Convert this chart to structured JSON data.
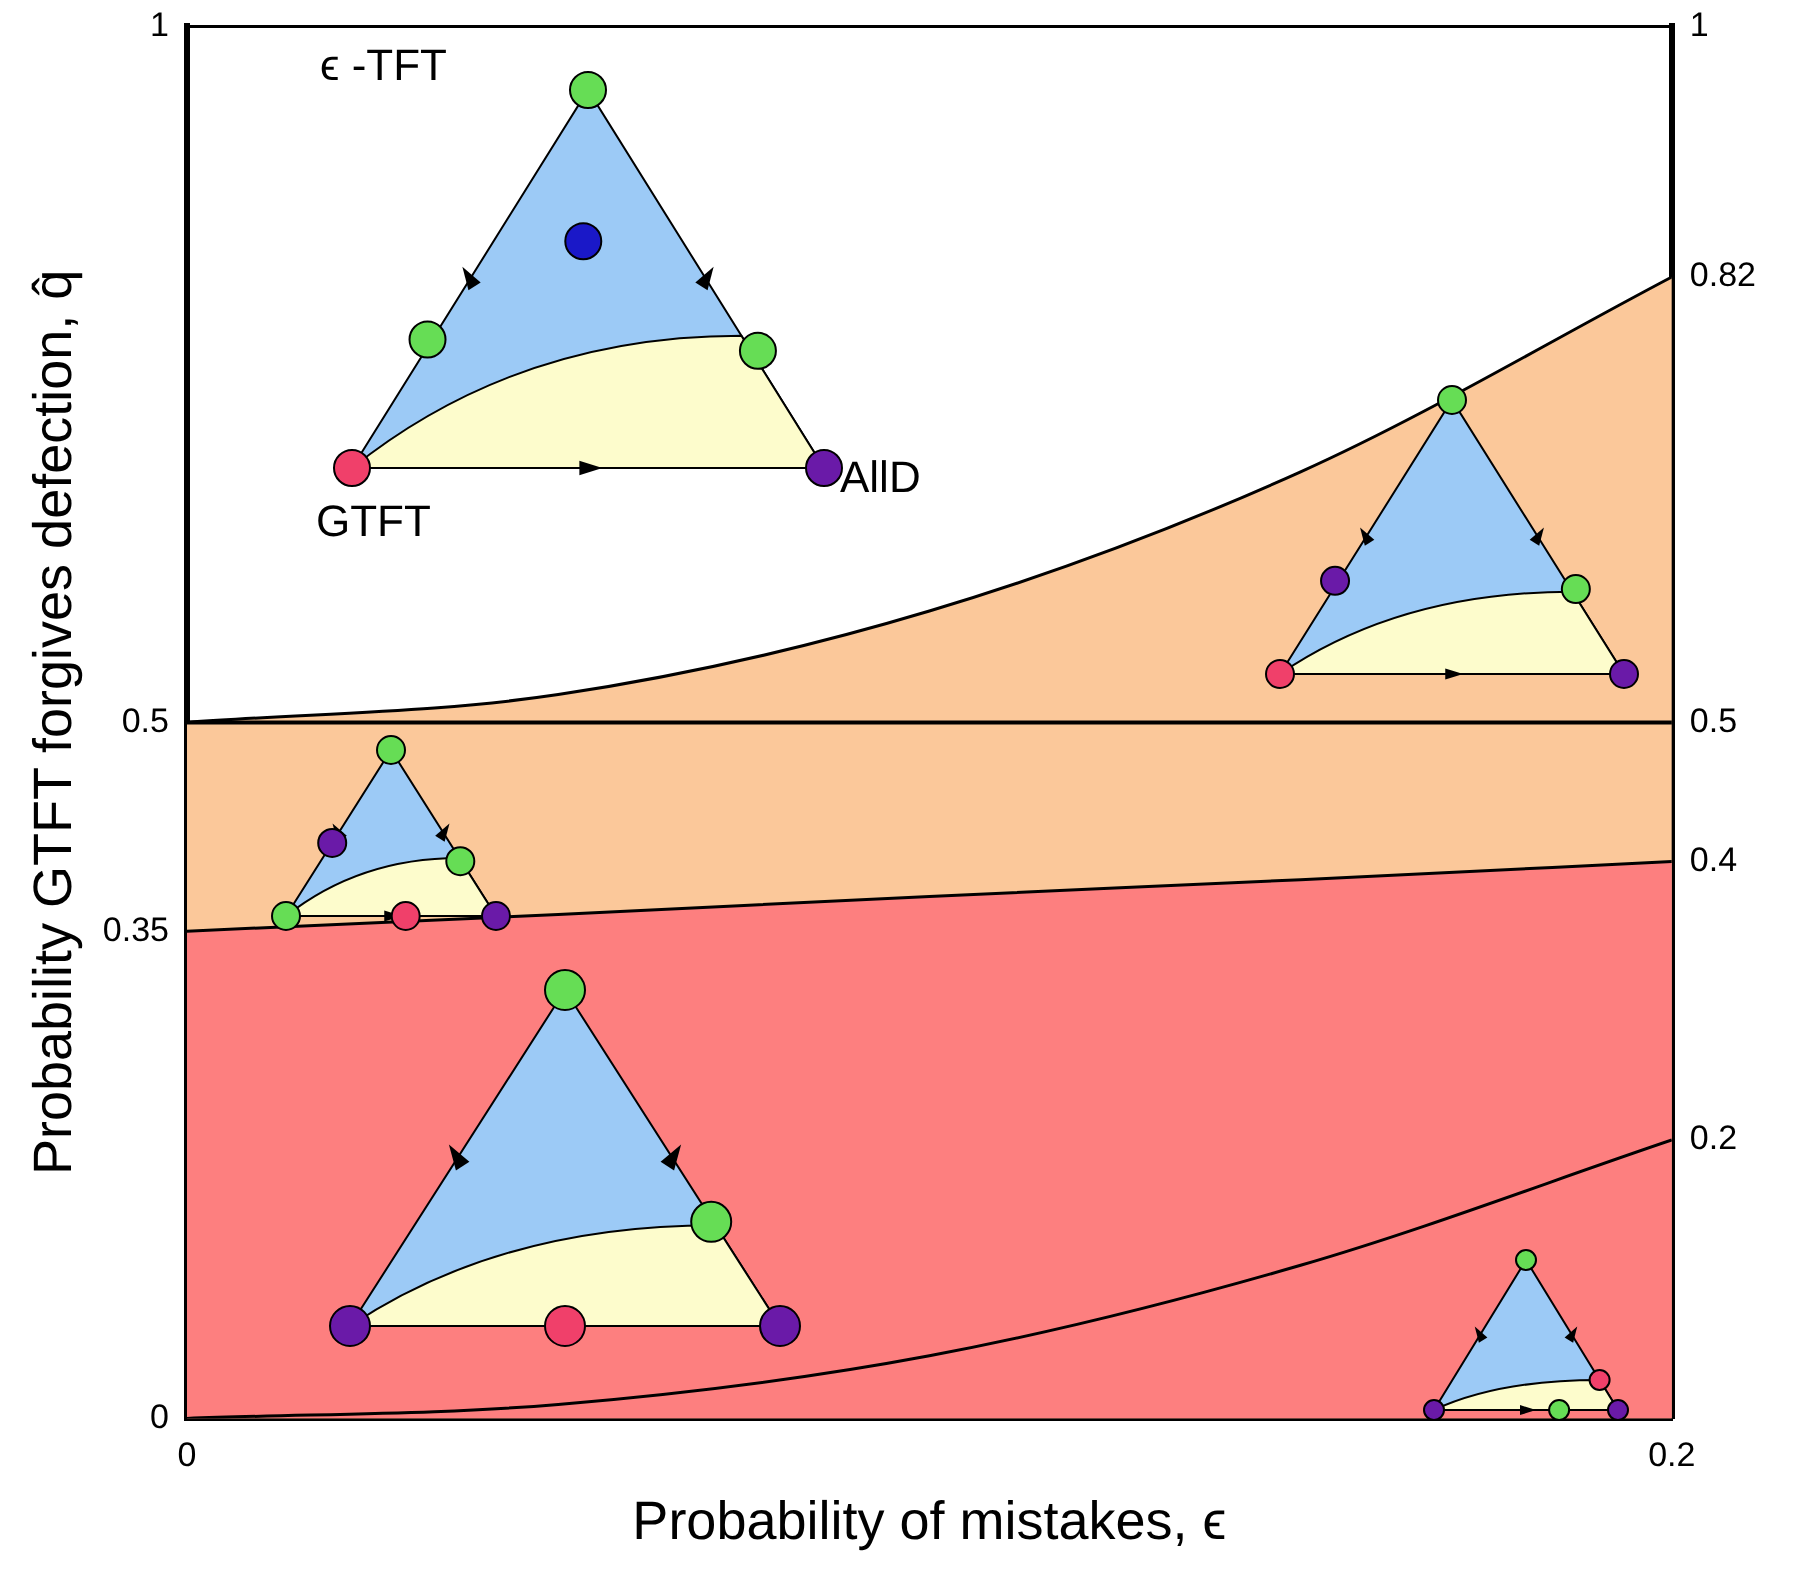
{
  "chart_data": {
    "type": "area",
    "xlabel": "Probability of mistakes, ϵ",
    "ylabel": "Probability GTFT forgives defection, q̂",
    "x": [
      0,
      0.05,
      0.1,
      0.15,
      0.2
    ],
    "series": [
      {
        "color": "#fbc89a",
        "values": [
          0.5,
          0.52,
          0.58,
          0.68,
          0.82
        ]
      },
      {
        "color": "#fd7f7f",
        "values": [
          0.35,
          0.362,
          0.375,
          0.387,
          0.4
        ]
      },
      {
        "type": "line",
        "color": "#000000",
        "values": [
          0,
          0.01,
          0.045,
          0.11,
          0.2
        ]
      }
    ],
    "xlim": [
      0,
      0.2
    ],
    "xticks": [
      0,
      0.2
    ],
    "ylim": [
      0,
      1
    ],
    "yticks": [
      0,
      0.35,
      0.5,
      1
    ],
    "y2lim": [
      0,
      1
    ],
    "y2ticks": [
      0.2,
      0.4,
      0.5,
      0.82,
      1
    ],
    "ref_lines": [
      {
        "axis": "y",
        "value": 0.5,
        "color": "#000000"
      }
    ],
    "annotations": [
      "ϵ -TFT",
      "GTFT",
      "AllD"
    ],
    "grid": false,
    "legend": false
  }
}
